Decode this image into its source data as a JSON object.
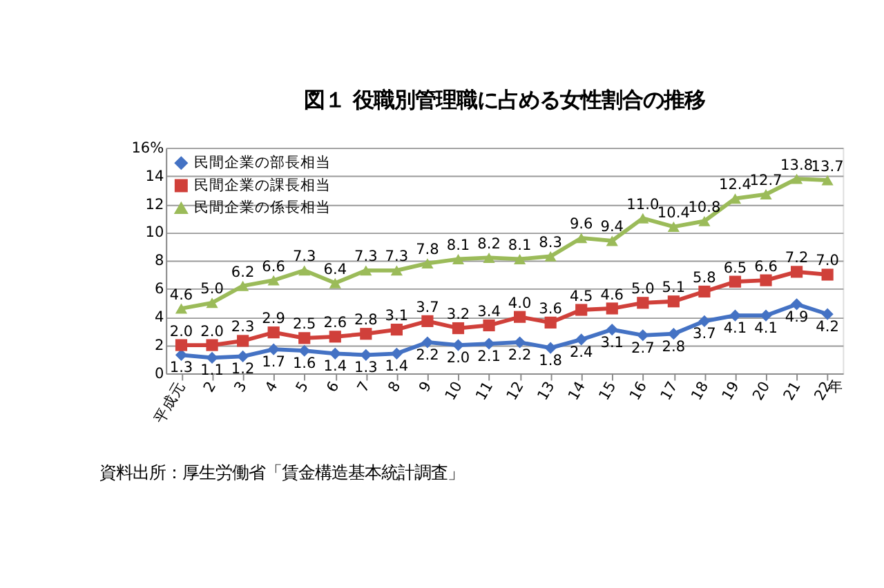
{
  "chart_data": {
    "type": "line",
    "title": "図１ 役職別管理職に占める女性割合の推移",
    "xlabel": "年",
    "categories": [
      "平成元",
      "2",
      "3",
      "4",
      "5",
      "6",
      "7",
      "8",
      "9",
      "10",
      "11",
      "12",
      "13",
      "14",
      "15",
      "16",
      "17",
      "18",
      "19",
      "20",
      "21",
      "22"
    ],
    "series": [
      {
        "name": "民間企業の部長相当",
        "color": "#4472c4",
        "marker": "diamond",
        "values": [
          1.3,
          1.1,
          1.2,
          1.7,
          1.6,
          1.4,
          1.3,
          1.4,
          2.2,
          2.0,
          2.1,
          2.2,
          1.8,
          2.4,
          3.1,
          2.7,
          2.8,
          3.7,
          4.1,
          4.1,
          4.9,
          4.2
        ],
        "value_labels": [
          "1.3",
          "1.1",
          "1.2",
          "1.7",
          "1.6",
          "1.4",
          "1.3",
          "1.4",
          "2.2",
          "2.0",
          "2.1",
          "2.2",
          "1.8",
          "2.4",
          "3.1",
          "2.7",
          "2.8",
          "3.7",
          "4.1",
          "4.1",
          "4.9",
          "4.2"
        ]
      },
      {
        "name": "民間企業の課長相当",
        "color": "#d0403a",
        "marker": "square",
        "values": [
          2.0,
          2.0,
          2.3,
          2.9,
          2.5,
          2.6,
          2.8,
          3.1,
          3.7,
          3.2,
          3.4,
          4.0,
          3.6,
          4.5,
          4.6,
          5.0,
          5.1,
          5.8,
          6.5,
          6.6,
          7.2,
          7.0
        ],
        "value_labels": [
          "2.0",
          "2.0",
          "2.3",
          "2.9",
          "2.5",
          "2.6",
          "2.8",
          "3.1",
          "3.7",
          "3.2",
          "3.4",
          "4.0",
          "3.6",
          "4.5",
          "4.6",
          "5.0",
          "5.1",
          "5.8",
          "6.5",
          "6.6",
          "7.2",
          "7.0"
        ]
      },
      {
        "name": "民間企業の係長相当",
        "color": "#9bbb59",
        "marker": "triangle",
        "values": [
          4.6,
          5.0,
          6.2,
          6.6,
          7.3,
          6.4,
          7.3,
          7.3,
          7.8,
          8.1,
          8.2,
          8.1,
          8.3,
          9.6,
          9.4,
          11.0,
          10.4,
          10.8,
          12.4,
          12.7,
          13.8,
          13.7
        ],
        "value_labels": [
          "4.6",
          "5.0",
          "6.2",
          "6.6",
          "7.3",
          "6.4",
          "7.3",
          "7.3",
          "7.8",
          "8.1",
          "8.2",
          "8.1",
          "8.3",
          "9.6",
          "9.4",
          "11.0",
          "10.4",
          "10.8",
          "12.4",
          "12.7",
          "13.8",
          "13.7"
        ]
      }
    ],
    "ylim": [
      0,
      16
    ],
    "yticks": [
      0,
      2,
      4,
      6,
      8,
      10,
      12,
      14,
      {
        "value": 16,
        "label": "16%"
      }
    ],
    "grid": "y",
    "legend": "top left",
    "line_style": "solid",
    "annotations": [
      "資料出所：厚生労働省「賃金構造基本統計調査」"
    ]
  }
}
